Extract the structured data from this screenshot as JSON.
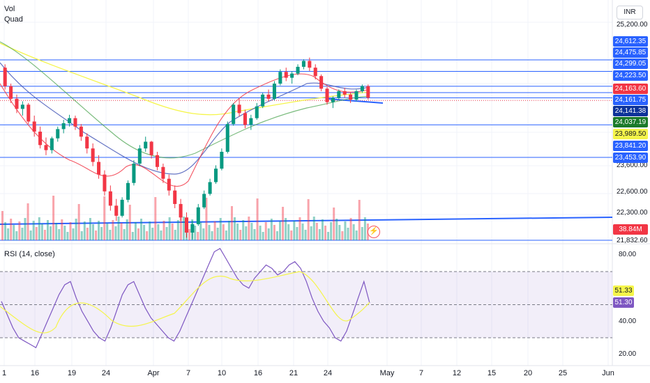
{
  "legend": {
    "volume_label": "Vol",
    "indicator_label": "Quad",
    "rsi_label": "RSI (14, close)"
  },
  "currency": "INR",
  "price_axis_plain": [
    {
      "text": "25,200.00"
    },
    {
      "text": "23,600.00"
    },
    {
      "text": "22,600.00"
    },
    {
      "text": "22,300.00"
    },
    {
      "text": "21,832.60"
    }
  ],
  "price_tags": [
    {
      "text": "24,612.35",
      "bg": "#2962ff",
      "fg": "#ffffff"
    },
    {
      "text": "24,475.85",
      "bg": "#2962ff",
      "fg": "#ffffff"
    },
    {
      "text": "24,299.05",
      "bg": "#2962ff",
      "fg": "#ffffff"
    },
    {
      "text": "24,223.50",
      "bg": "#2962ff",
      "fg": "#ffffff"
    },
    {
      "text": "24,163.60",
      "bg": "#f23645",
      "fg": "#ffffff"
    },
    {
      "text": "24,161.75",
      "bg": "#2962ff",
      "fg": "#ffffff"
    },
    {
      "text": "24,141.38",
      "bg": "#0c3299",
      "fg": "#ffffff"
    },
    {
      "text": "24,037.19",
      "bg": "#1b7a2a",
      "fg": "#ffffff"
    },
    {
      "text": "23,989.50",
      "bg": "#f5f54a",
      "fg": "#131722"
    },
    {
      "text": "23,841.20",
      "bg": "#2962ff",
      "fg": "#ffffff"
    },
    {
      "text": "23,453.90",
      "bg": "#2962ff",
      "fg": "#ffffff"
    },
    {
      "text": "38.84M",
      "bg": "#f23645",
      "fg": "#ffffff"
    }
  ],
  "rsi_axis": [
    {
      "text": "80.00"
    },
    {
      "text": "40.00"
    },
    {
      "text": "20.00"
    }
  ],
  "rsi_tags": [
    {
      "text": "51.33",
      "bg": "#f5f54a",
      "fg": "#131722"
    },
    {
      "text": "51.30",
      "bg": "#7e57c2",
      "fg": "#ffffff"
    }
  ],
  "time_labels": [
    "1",
    "16",
    "19",
    "24",
    "Apr",
    "7",
    "10",
    "16",
    "21",
    "24",
    "May",
    "7",
    "12",
    "15",
    "20",
    "25",
    "Jun"
  ],
  "colors": {
    "up": "#089981",
    "down": "#f23645",
    "level_line": "#2962ff",
    "rsi_line": "#7e57c2",
    "rsi_ma": "#f5f54a",
    "rsi_band": "#7e57c2"
  },
  "chart_data": {
    "type": "candlestick",
    "candles": [
      [
        24520,
        24560,
        24260,
        24300
      ],
      [
        24300,
        24330,
        24100,
        24150
      ],
      [
        24150,
        24200,
        23980,
        24030
      ],
      [
        24030,
        24120,
        23950,
        24080
      ],
      [
        24080,
        24100,
        23850,
        23880
      ],
      [
        23880,
        23950,
        23700,
        23760
      ],
      [
        23760,
        23820,
        23560,
        23600
      ],
      [
        23600,
        23690,
        23480,
        23540
      ],
      [
        23540,
        23700,
        23500,
        23680
      ],
      [
        23680,
        23820,
        23640,
        23790
      ],
      [
        23790,
        23900,
        23740,
        23860
      ],
      [
        23860,
        23960,
        23820,
        23920
      ],
      [
        23920,
        23950,
        23780,
        23820
      ],
      [
        23820,
        23850,
        23650,
        23700
      ],
      [
        23700,
        23740,
        23500,
        23560
      ],
      [
        23560,
        23620,
        23350,
        23400
      ],
      [
        23400,
        23480,
        23200,
        23250
      ],
      [
        23250,
        23300,
        23000,
        23050
      ],
      [
        23050,
        23120,
        22820,
        22880
      ],
      [
        22880,
        22960,
        22700,
        22760
      ],
      [
        22760,
        22980,
        22740,
        22950
      ],
      [
        22950,
        23180,
        22920,
        23150
      ],
      [
        23150,
        23420,
        23120,
        23380
      ],
      [
        23380,
        23600,
        23350,
        23560
      ],
      [
        23560,
        23700,
        23520,
        23640
      ],
      [
        23640,
        23650,
        23440,
        23480
      ],
      [
        23480,
        23520,
        23300,
        23340
      ],
      [
        23340,
        23380,
        23150,
        23200
      ],
      [
        23200,
        23250,
        23000,
        23060
      ],
      [
        23060,
        23120,
        22850,
        22900
      ],
      [
        22900,
        22960,
        22700,
        22740
      ],
      [
        22740,
        22800,
        22500,
        22560
      ],
      [
        22560,
        22700,
        22480,
        22660
      ],
      [
        22660,
        22900,
        22640,
        22860
      ],
      [
        22860,
        23060,
        22840,
        23020
      ],
      [
        23020,
        23200,
        23000,
        23160
      ],
      [
        23160,
        23360,
        23140,
        23320
      ],
      [
        23320,
        23560,
        23300,
        23520
      ],
      [
        23520,
        23880,
        23500,
        23850
      ],
      [
        23850,
        24100,
        23830,
        24080
      ],
      [
        24080,
        24150,
        23940,
        23980
      ],
      [
        23980,
        24020,
        23800,
        23840
      ],
      [
        23840,
        23960,
        23780,
        23920
      ],
      [
        23920,
        24100,
        23900,
        24060
      ],
      [
        24060,
        24220,
        24040,
        24200
      ],
      [
        24200,
        24260,
        24120,
        24150
      ],
      [
        24150,
        24360,
        24130,
        24330
      ],
      [
        24330,
        24500,
        24310,
        24470
      ],
      [
        24470,
        24520,
        24360,
        24400
      ],
      [
        24400,
        24480,
        24330,
        24450
      ],
      [
        24450,
        24560,
        24430,
        24530
      ],
      [
        24530,
        24620,
        24500,
        24600
      ],
      [
        24600,
        24640,
        24480,
        24520
      ],
      [
        24520,
        24560,
        24380,
        24420
      ],
      [
        24420,
        24440,
        24240,
        24270
      ],
      [
        24270,
        24290,
        24080,
        24110
      ],
      [
        24110,
        24180,
        24040,
        24160
      ],
      [
        24160,
        24260,
        24140,
        24240
      ],
      [
        24240,
        24280,
        24160,
        24200
      ],
      [
        24200,
        24230,
        24100,
        24140
      ],
      [
        24140,
        24260,
        24120,
        24240
      ],
      [
        24240,
        24320,
        24220,
        24300
      ],
      [
        24300,
        24320,
        24140,
        24163
      ]
    ],
    "levels": [
      24612.35,
      24475.85,
      24299.05,
      24223.5,
      24161.75,
      23841.2,
      23453.9
    ],
    "current_price": 24163.6,
    "volume_last": "38.84M",
    "rsi_last": 51.3,
    "rsi_ma_last": 51.33,
    "rsi_levels": [
      70,
      50,
      30
    ]
  }
}
